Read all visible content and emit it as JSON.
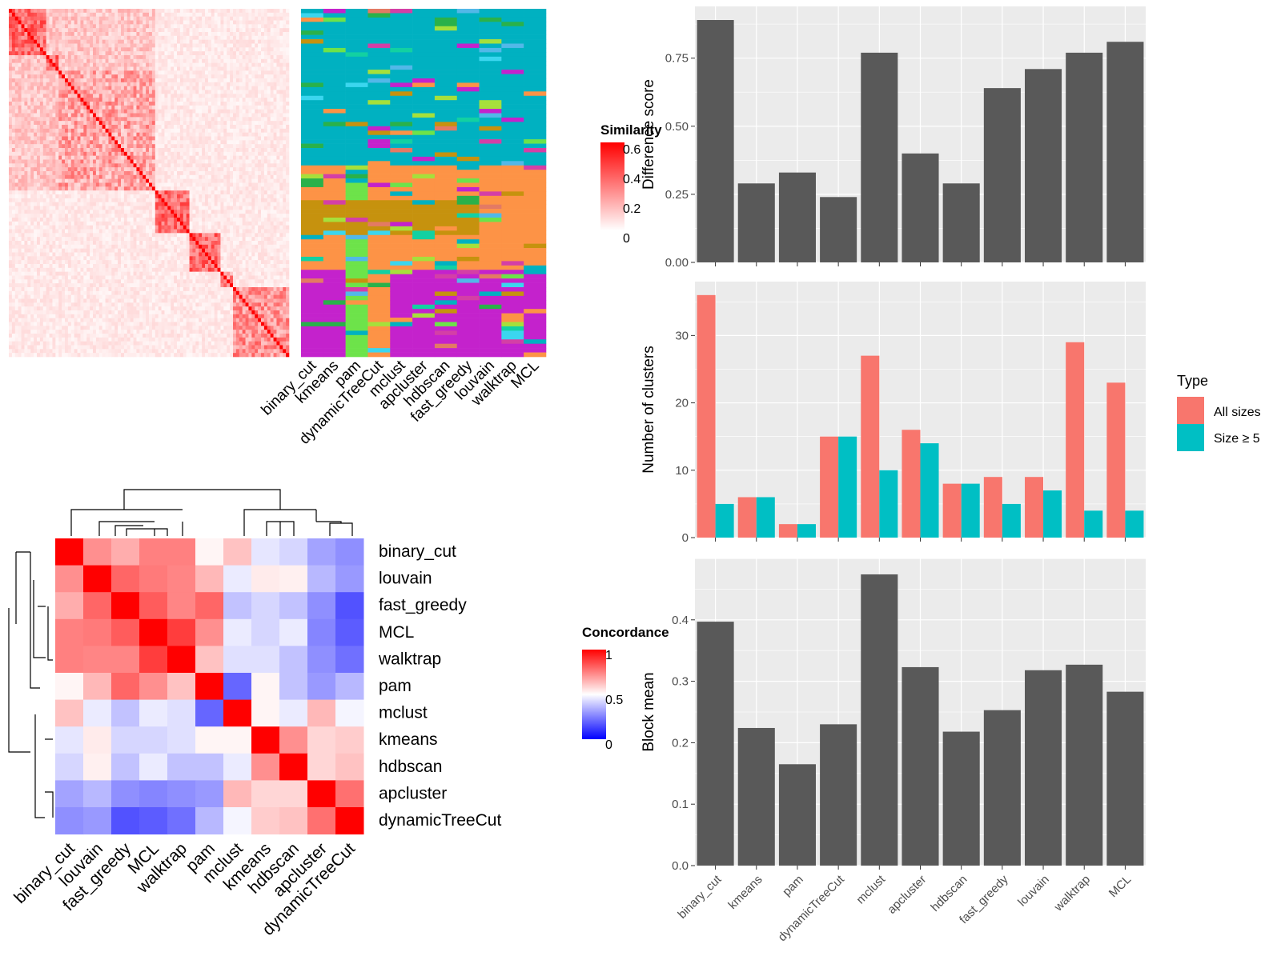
{
  "methods_order": [
    "binary_cut",
    "kmeans",
    "pam",
    "dynamicTreeCut",
    "mclust",
    "apcluster",
    "hdbscan",
    "fast_greedy",
    "louvain",
    "walktrap",
    "MCL"
  ],
  "colors": {
    "sim_high": "#ff0000",
    "sim_low": "#ffffff",
    "conc_high": "#ff0000",
    "conc_mid": "#ffffff",
    "conc_low": "#0000ff",
    "panel_bg": "#ebebeb",
    "bar_dark": "#595959",
    "all_sizes": "#f8766d",
    "size_ge5": "#00bfc4"
  },
  "top_left": {
    "legend_title": "Similarity",
    "legend_ticks": [
      "0.6",
      "0.4",
      "0.2",
      "0"
    ],
    "column_labels": [
      "binary_cut",
      "kmeans",
      "pam",
      "dynamicTreeCut",
      "mclust",
      "apcluster",
      "hdbscan",
      "fast_greedy",
      "louvain",
      "walktrap",
      "MCL"
    ]
  },
  "concordance": {
    "legend_title": "Concordance",
    "legend_ticks": [
      "1",
      "0.5",
      "0"
    ],
    "labels": [
      "binary_cut",
      "louvain",
      "fast_greedy",
      "MCL",
      "walktrap",
      "pam",
      "mclust",
      "kmeans",
      "hdbscan",
      "apcluster",
      "dynamicTreeCut"
    ],
    "matrix": [
      [
        1.0,
        0.72,
        0.66,
        0.75,
        0.75,
        0.52,
        0.62,
        0.45,
        0.42,
        0.32,
        0.28
      ],
      [
        0.72,
        1.0,
        0.8,
        0.76,
        0.74,
        0.64,
        0.46,
        0.54,
        0.53,
        0.36,
        0.3
      ],
      [
        0.66,
        0.8,
        1.0,
        0.82,
        0.74,
        0.8,
        0.38,
        0.42,
        0.38,
        0.28,
        0.16
      ],
      [
        0.75,
        0.76,
        0.82,
        1.0,
        0.88,
        0.72,
        0.46,
        0.42,
        0.46,
        0.26,
        0.18
      ],
      [
        0.75,
        0.74,
        0.74,
        0.88,
        1.0,
        0.62,
        0.44,
        0.44,
        0.38,
        0.28,
        0.22
      ],
      [
        0.52,
        0.64,
        0.8,
        0.72,
        0.62,
        1.0,
        0.2,
        0.52,
        0.38,
        0.3,
        0.36
      ],
      [
        0.62,
        0.46,
        0.38,
        0.46,
        0.44,
        0.2,
        1.0,
        0.52,
        0.46,
        0.64,
        0.48
      ],
      [
        0.45,
        0.54,
        0.42,
        0.42,
        0.44,
        0.52,
        0.52,
        1.0,
        0.72,
        0.58,
        0.6
      ],
      [
        0.42,
        0.53,
        0.38,
        0.46,
        0.38,
        0.38,
        0.46,
        0.72,
        1.0,
        0.58,
        0.62
      ],
      [
        0.32,
        0.36,
        0.28,
        0.26,
        0.28,
        0.3,
        0.64,
        0.58,
        0.58,
        1.0,
        0.78
      ],
      [
        0.28,
        0.3,
        0.16,
        0.18,
        0.22,
        0.36,
        0.48,
        0.6,
        0.62,
        0.78,
        1.0
      ]
    ]
  },
  "chart_data": [
    {
      "type": "bar",
      "panel": "difference",
      "categories": [
        "binary_cut",
        "kmeans",
        "pam",
        "dynamicTreeCut",
        "mclust",
        "apcluster",
        "hdbscan",
        "fast_greedy",
        "louvain",
        "walktrap",
        "MCL"
      ],
      "values": [
        0.89,
        0.29,
        0.33,
        0.24,
        0.77,
        0.4,
        0.29,
        0.64,
        0.71,
        0.77,
        0.81
      ],
      "ylabel": "Difference score",
      "ylim": [
        0,
        0.94
      ],
      "yticks": [
        "0.00",
        "0.25",
        "0.50",
        "0.75"
      ],
      "grid": true
    },
    {
      "type": "bar",
      "panel": "clusters",
      "categories": [
        "binary_cut",
        "kmeans",
        "pam",
        "dynamicTreeCut",
        "mclust",
        "apcluster",
        "hdbscan",
        "fast_greedy",
        "louvain",
        "walktrap",
        "MCL"
      ],
      "series": [
        {
          "name": "All sizes",
          "values": [
            36,
            6,
            2,
            15,
            27,
            16,
            8,
            9,
            9,
            29,
            23
          ]
        },
        {
          "name": "Size ≥ 5",
          "values": [
            5,
            6,
            2,
            15,
            10,
            14,
            8,
            5,
            7,
            4,
            4
          ]
        }
      ],
      "ylabel": "Number of clusters",
      "ylim": [
        0,
        38
      ],
      "yticks": [
        "0",
        "10",
        "20",
        "30"
      ],
      "legend_title": "Type",
      "legend_position": "right",
      "grid": true
    },
    {
      "type": "bar",
      "panel": "blockmean",
      "categories": [
        "binary_cut",
        "kmeans",
        "pam",
        "dynamicTreeCut",
        "mclust",
        "apcluster",
        "hdbscan",
        "fast_greedy",
        "louvain",
        "walktrap",
        "MCL"
      ],
      "values": [
        0.397,
        0.224,
        0.165,
        0.23,
        0.474,
        0.323,
        0.218,
        0.253,
        0.318,
        0.327,
        0.283
      ],
      "ylabel": "Block mean",
      "ylim": [
        0,
        0.5
      ],
      "yticks": [
        "0.0",
        "0.1",
        "0.2",
        "0.3",
        "0.4"
      ],
      "grid": true
    }
  ]
}
